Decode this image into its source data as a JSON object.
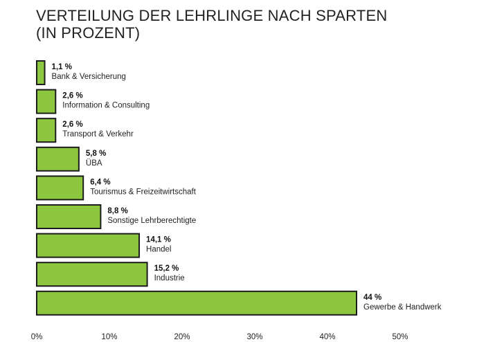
{
  "chart_data": {
    "type": "bar",
    "orientation": "horizontal",
    "title_lines": [
      "VERTEILUNG DER LEHRLINGE NACH SPARTEN",
      "(IN PROZENT)"
    ],
    "categories": [
      "Bank & Versicherung",
      "Information & Consulting",
      "Transport & Verkehr",
      "ÜBA",
      "Tourismus & Freizeitwirtschaft",
      "Sonstige Lehrberechtigte",
      "Handel",
      "Industrie",
      "Gewerbe & Handwerk"
    ],
    "values": [
      1.1,
      2.6,
      2.6,
      5.8,
      6.4,
      8.8,
      14.1,
      15.2,
      44
    ],
    "value_labels": [
      "1,1 %",
      "2,6 %",
      "2,6 %",
      "5,8 %",
      "6,4 %",
      "8,8 %",
      "14,1 %",
      "15,2 %",
      "44 %"
    ],
    "xlim": [
      0,
      50
    ],
    "xticks": [
      0,
      10,
      20,
      30,
      40,
      50
    ],
    "xtick_labels": [
      "0%",
      "10%",
      "20%",
      "30%",
      "40%",
      "50%"
    ],
    "xlabel": "",
    "ylabel": "",
    "grid": false,
    "bar_color": "#8dc63f",
    "bar_edge_color": "#1c1c1c"
  }
}
